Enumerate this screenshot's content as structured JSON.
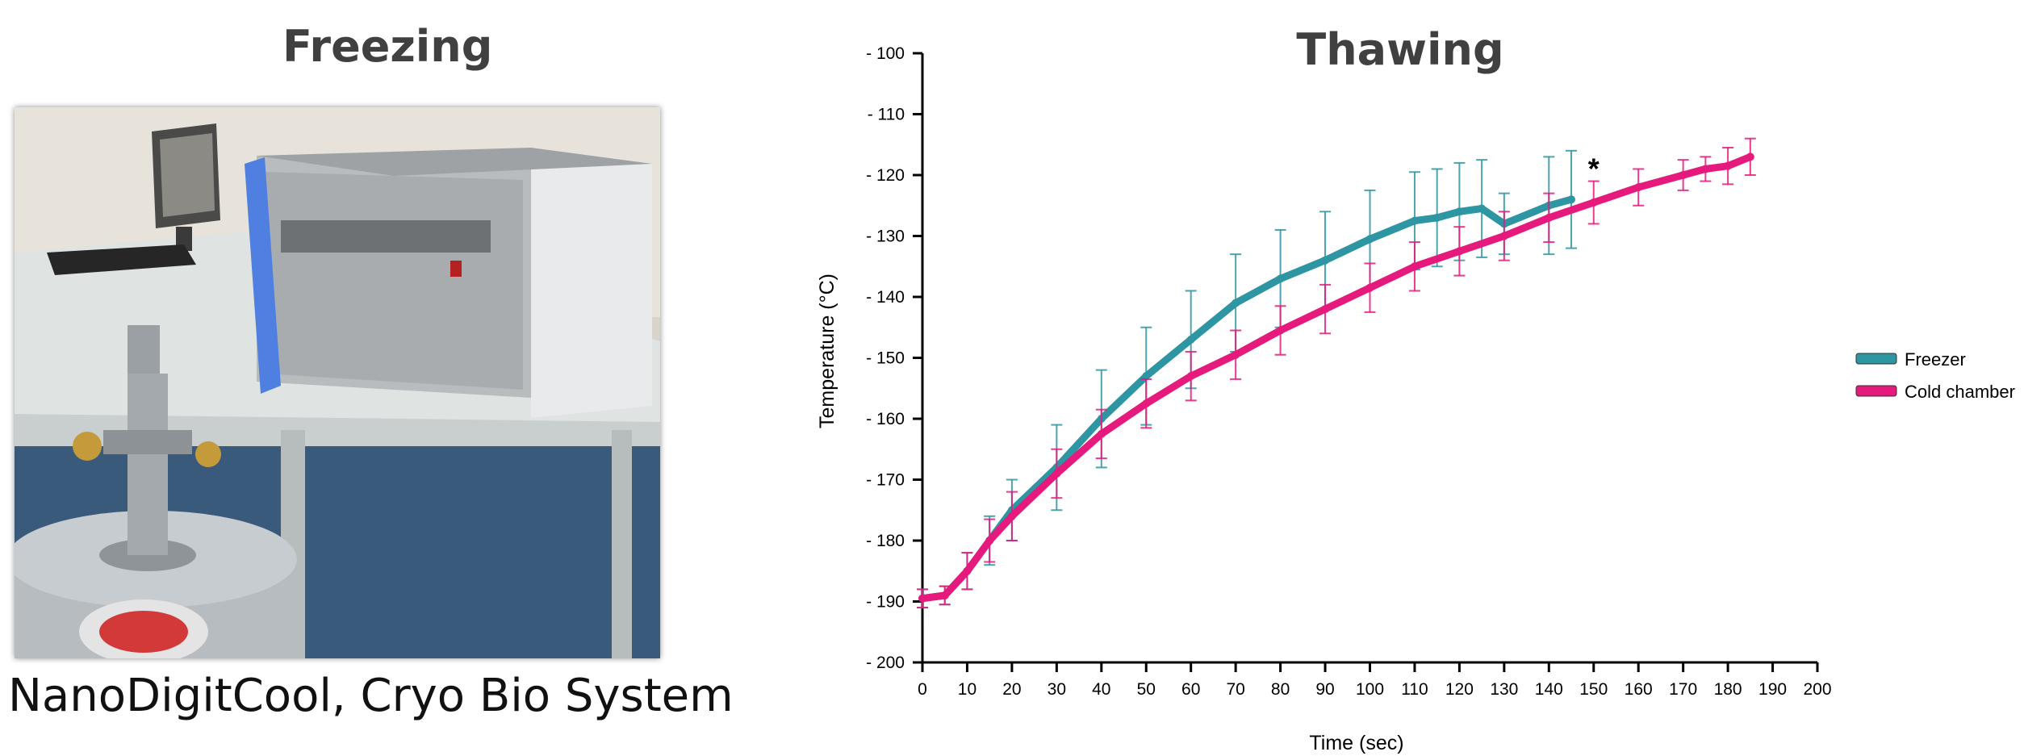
{
  "freezing": {
    "title": "Freezing",
    "caption": "NanoDigitCool, Cryo Bio System",
    "photo_icon": "freezing-device-photo"
  },
  "chart_data": {
    "type": "line",
    "title": "Thawing",
    "xlabel": "Time (sec)",
    "ylabel": "Temperature (°C)",
    "xlim": [
      0,
      200
    ],
    "ylim": [
      -200,
      -100
    ],
    "xticks": [
      0,
      10,
      20,
      30,
      40,
      50,
      60,
      70,
      80,
      90,
      100,
      110,
      120,
      130,
      140,
      150,
      160,
      170,
      180,
      190,
      200
    ],
    "yticks": [
      -100,
      -110,
      -120,
      -130,
      -140,
      -150,
      -160,
      -170,
      -180,
      -190,
      -200
    ],
    "ytick_labels": [
      "- 100",
      "- 110",
      "- 120",
      "- 130",
      "- 140",
      "- 150",
      "- 160",
      "- 170",
      "- 180",
      "- 190",
      "- 200"
    ],
    "annotation": "*",
    "annotation_x": 150,
    "annotation_y": -119,
    "legend_position": "right",
    "grid": false,
    "series": [
      {
        "name": "Freezer",
        "color": "#2E95A3",
        "x": [
          0,
          5,
          10,
          15,
          20,
          30,
          40,
          50,
          60,
          70,
          80,
          90,
          100,
          110,
          115,
          120,
          125,
          130,
          140,
          145
        ],
        "y": [
          -189.5,
          -189,
          -185,
          -180,
          -175,
          -168,
          -160,
          -153,
          -147,
          -141,
          -137,
          -134,
          -130.5,
          -127.5,
          -127,
          -126,
          -125.5,
          -128,
          -125,
          -124
        ],
        "err": [
          1.5,
          1.5,
          3,
          4,
          5,
          7,
          8,
          8,
          8,
          8,
          8,
          8,
          8,
          8,
          8,
          8,
          8,
          5,
          8,
          8
        ]
      },
      {
        "name": "Cold chamber",
        "color": "#E6197C",
        "x": [
          0,
          5,
          10,
          15,
          20,
          30,
          40,
          50,
          60,
          70,
          80,
          90,
          100,
          110,
          120,
          130,
          140,
          150,
          160,
          170,
          175,
          180,
          185
        ],
        "y": [
          -189.5,
          -189,
          -185,
          -180,
          -176,
          -169,
          -162.5,
          -157.5,
          -153,
          -149.5,
          -145.5,
          -142,
          -138.5,
          -135,
          -132.5,
          -130,
          -127,
          -124.5,
          -122,
          -120,
          -119,
          -118.5,
          -117
        ],
        "err": [
          1.5,
          1.5,
          3,
          3.5,
          4,
          4,
          4,
          4,
          4,
          4,
          4,
          4,
          4,
          4,
          4,
          4,
          4,
          3.5,
          3,
          2.5,
          2,
          3,
          3
        ]
      }
    ]
  }
}
